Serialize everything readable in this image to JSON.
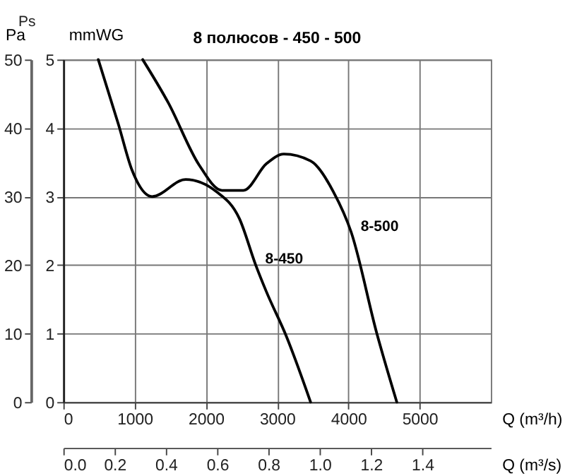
{
  "chart_data": {
    "type": "line",
    "title": "8 полюсов - 450 - 500",
    "xlabel": "Q (m³/h)",
    "x2label": "Q (m³/s)",
    "ylabel": "Pa",
    "y2label": "mmWG",
    "annotations": [
      "Ps"
    ],
    "xlim": [
      0,
      6000
    ],
    "xticks": [
      0,
      1000,
      2000,
      3000,
      4000,
      5000
    ],
    "x2lim": [
      0,
      1.667
    ],
    "x2ticks": [
      {
        "value": 0,
        "label": "0.0"
      },
      0.2,
      0.4,
      0.6,
      0.8,
      {
        "value": 1,
        "label": "1.0"
      },
      1.2,
      1.4
    ],
    "ylim": [
      0,
      50
    ],
    "yticks": [
      0,
      10,
      20,
      30,
      40,
      50
    ],
    "y2lim": [
      0,
      5
    ],
    "y2ticks": [
      0,
      1,
      2,
      3,
      4,
      5
    ],
    "grid": true,
    "legend": false,
    "line_style": "solid",
    "series": [
      {
        "name": "8-450",
        "color": "#000000",
        "x": [
          490,
          774,
          962,
          1245,
          1717,
          2150,
          2470,
          2700,
          2850,
          3130,
          3470
        ],
        "values": [
          50,
          40.5,
          33.9,
          30,
          32.5,
          30.7,
          26.8,
          20,
          16.1,
          9.6,
          0
        ]
      },
      {
        "name": "8-500",
        "color": "#000000",
        "x": [
          1113,
          1472,
          1906,
          2226,
          2528,
          2850,
          3094,
          3470,
          3790,
          4040,
          4400,
          4680
        ],
        "values": [
          50,
          43.7,
          34.6,
          30.9,
          30.9,
          34.8,
          36.2,
          35.2,
          30.7,
          24.8,
          10,
          0
        ]
      }
    ]
  }
}
